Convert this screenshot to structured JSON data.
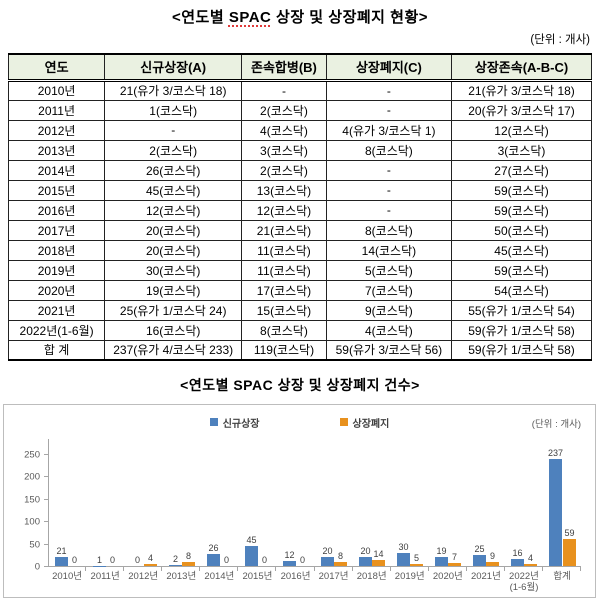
{
  "header": {
    "title_prefix": "<연도별 ",
    "title_spac": "SPAC",
    "title_suffix": " 상장 및 상장폐지 현황>",
    "unit_note": "(단위 : 개사)"
  },
  "table": {
    "headers": [
      "연도",
      "신규상장(A)",
      "존속합병(B)",
      "상장폐지(C)",
      "상장존속(A-B-C)"
    ],
    "rows": [
      [
        "2010년",
        "21(유가 3/코스닥 18)",
        "-",
        "-",
        "21(유가 3/코스닥 18)"
      ],
      [
        "2011년",
        "1(코스닥)",
        "2(코스닥)",
        "-",
        "20(유가 3/코스닥 17)"
      ],
      [
        "2012년",
        "-",
        "4(코스닥)",
        "4(유가 3/코스닥 1)",
        "12(코스닥)"
      ],
      [
        "2013년",
        "2(코스닥)",
        "3(코스닥)",
        "8(코스닥)",
        "3(코스닥)"
      ],
      [
        "2014년",
        "26(코스닥)",
        "2(코스닥)",
        "-",
        "27(코스닥)"
      ],
      [
        "2015년",
        "45(코스닥)",
        "13(코스닥)",
        "-",
        "59(코스닥)"
      ],
      [
        "2016년",
        "12(코스닥)",
        "12(코스닥)",
        "-",
        "59(코스닥)"
      ],
      [
        "2017년",
        "20(코스닥)",
        "21(코스닥)",
        "8(코스닥)",
        "50(코스닥)"
      ],
      [
        "2018년",
        "20(코스닥)",
        "11(코스닥)",
        "14(코스닥)",
        "45(코스닥)"
      ],
      [
        "2019년",
        "30(코스닥)",
        "11(코스닥)",
        "5(코스닥)",
        "59(코스닥)"
      ],
      [
        "2020년",
        "19(코스닥)",
        "17(코스닥)",
        "7(코스닥)",
        "54(코스닥)"
      ],
      [
        "2021년",
        "25(유가 1/코스닥 24)",
        "15(코스닥)",
        "9(코스닥)",
        "55(유가 1/코스닥 54)"
      ],
      [
        "2022년(1-6월)",
        "16(코스닥)",
        "8(코스닥)",
        "4(코스닥)",
        "59(유가 1/코스닥 58)"
      ],
      [
        "합 계",
        "237(유가 4/코스닥 233)",
        "119(코스닥)",
        "59(유가 3/코스닥 56)",
        "59(유가 1/코스닥 58)"
      ]
    ]
  },
  "chart": {
    "title": "<연도별 SPAC 상장 및 상장폐지 건수>",
    "unit_note": "(단위 : 개사)"
  },
  "chart_data": {
    "type": "bar",
    "title": "<연도별 SPAC 상장 및 상장폐지 건수>",
    "xlabel": "",
    "ylabel": "",
    "ylim": [
      0,
      250
    ],
    "yticks": [
      0,
      50,
      100,
      150,
      200,
      250
    ],
    "grid": false,
    "legend_position": "top-center",
    "categories": [
      "2010년",
      "2011년",
      "2012년",
      "2013년",
      "2014년",
      "2015년",
      "2016년",
      "2017년",
      "2018년",
      "2019년",
      "2020년",
      "2021년",
      "2022년\n(1-6월)",
      "합계"
    ],
    "series": [
      {
        "name": "신규상장",
        "slug": "new-listing",
        "color": "#4E81BD",
        "values": [
          21,
          1,
          0,
          2,
          26,
          45,
          12,
          20,
          20,
          30,
          19,
          25,
          16,
          237
        ]
      },
      {
        "name": "상장폐지",
        "slug": "delisting",
        "color": "#E8911E",
        "values": [
          0,
          0,
          4,
          8,
          0,
          0,
          0,
          8,
          14,
          5,
          7,
          9,
          4,
          59
        ]
      }
    ]
  }
}
